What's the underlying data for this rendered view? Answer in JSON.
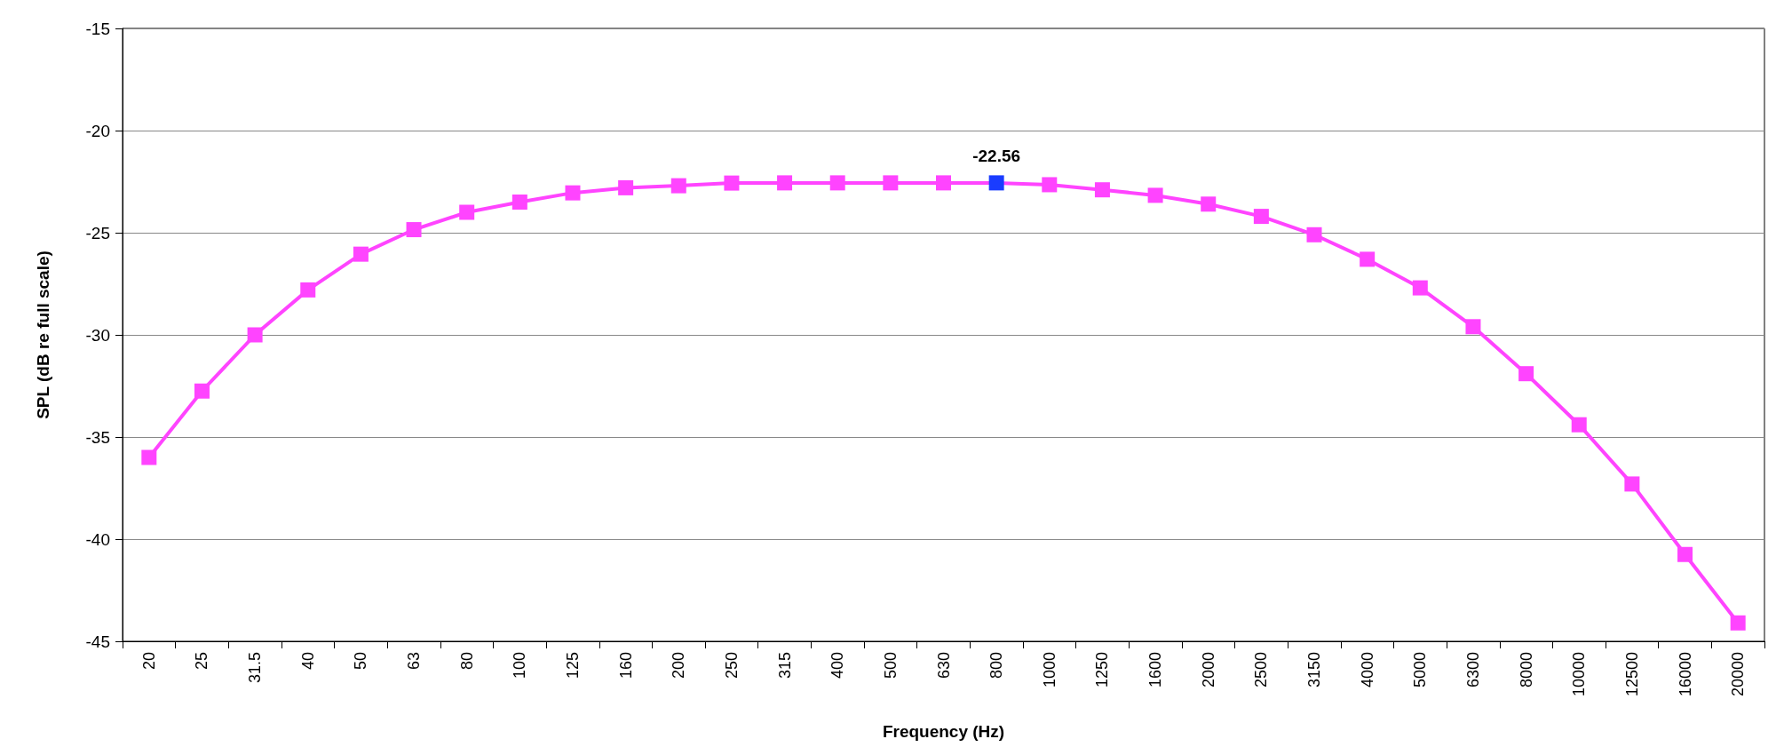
{
  "chart_data": {
    "type": "line",
    "xlabel": "Frequency (Hz)",
    "ylabel": "SPL (dB re full scale)",
    "categories": [
      "20",
      "25",
      "31.5",
      "40",
      "50",
      "63",
      "80",
      "100",
      "125",
      "160",
      "200",
      "250",
      "315",
      "400",
      "500",
      "630",
      "800",
      "1000",
      "1250",
      "1600",
      "2000",
      "2500",
      "3150",
      "4000",
      "5000",
      "6300",
      "8000",
      "10000",
      "12500",
      "16000",
      "20000"
    ],
    "series": [
      {
        "color": "#ff44ff",
        "colors": [
          "#ff44ff",
          "#ff44ff",
          "#ff44ff",
          "#ff44ff",
          "#ff44ff",
          "#ff44ff",
          "#ff44ff",
          "#ff44ff",
          "#ff44ff",
          "#ff44ff",
          "#ff44ff",
          "#ff44ff",
          "#ff44ff",
          "#ff44ff",
          "#ff44ff",
          "#ff44ff",
          "#1a3cff",
          "#ff44ff",
          "#ff44ff",
          "#ff44ff",
          "#ff44ff",
          "#ff44ff",
          "#ff44ff",
          "#ff44ff",
          "#ff44ff",
          "#ff44ff",
          "#ff44ff",
          "#ff44ff",
          "#ff44ff",
          "#ff44ff",
          "#ff44ff"
        ],
        "values": [
          -36.0,
          -32.75,
          -30.0,
          -27.8,
          -26.05,
          -24.85,
          -24.0,
          -23.5,
          -23.05,
          -22.8,
          -22.7,
          -22.57,
          -22.56,
          -22.56,
          -22.56,
          -22.56,
          -22.56,
          -22.65,
          -22.9,
          -23.17,
          -23.6,
          -24.2,
          -25.1,
          -26.3,
          -27.7,
          -29.6,
          -31.9,
          -34.4,
          -37.3,
          -40.75,
          -44.1
        ],
        "value_labels": [
          null,
          null,
          null,
          null,
          null,
          null,
          null,
          null,
          null,
          null,
          null,
          null,
          null,
          null,
          null,
          null,
          "-22.56",
          null,
          null,
          null,
          null,
          null,
          null,
          null,
          null,
          null,
          null,
          null,
          null,
          null,
          null
        ]
      }
    ],
    "ylim": [
      -45,
      -15
    ],
    "yticks": [
      -45,
      -40,
      -35,
      -30,
      -25,
      -20,
      -15
    ],
    "grid": "y",
    "marker": "square",
    "line_style": "solid"
  }
}
